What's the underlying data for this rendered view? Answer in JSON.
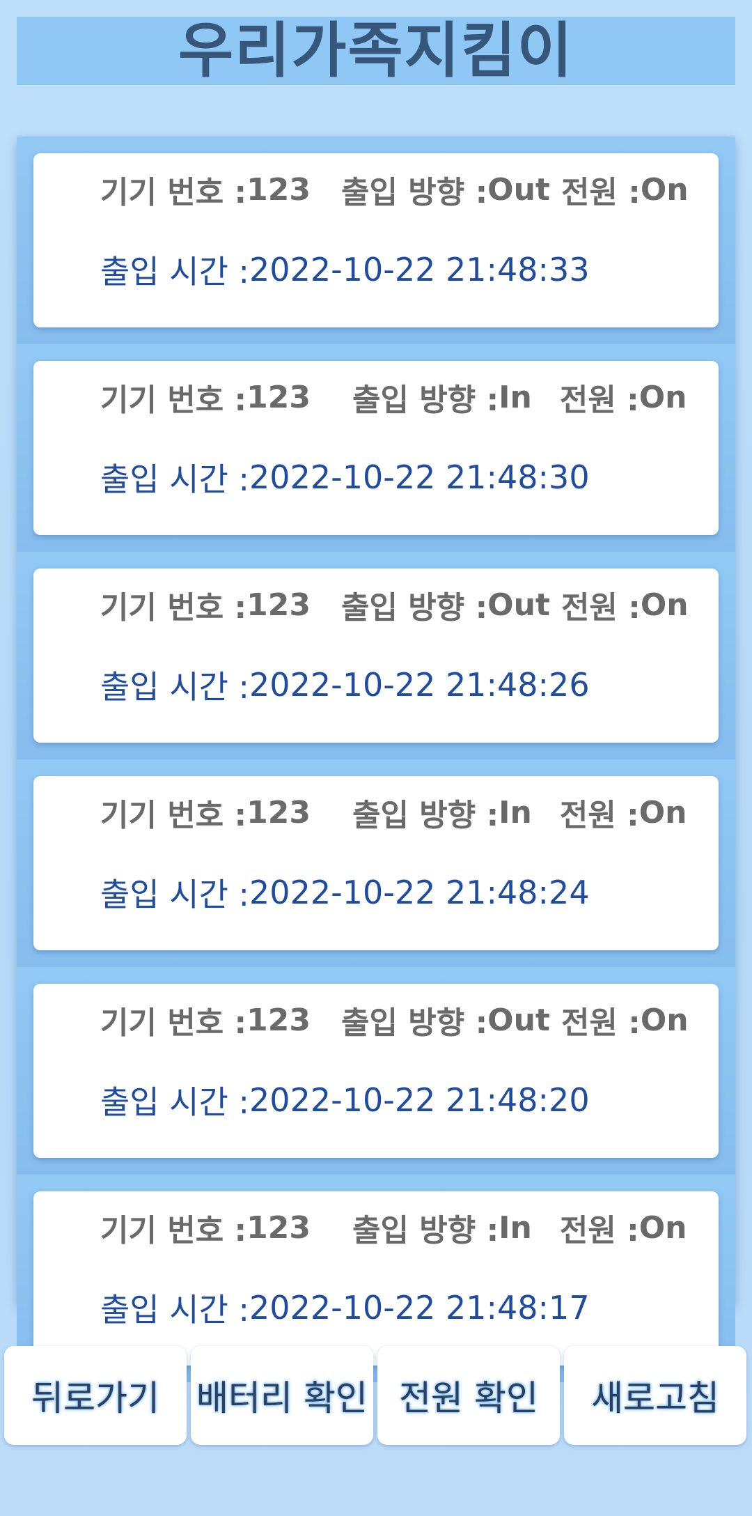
{
  "app": {
    "title": "우리가족지킴이"
  },
  "labels": {
    "device": "기기 번호 : ",
    "direction": "출입 방향 : ",
    "power": "전원 : ",
    "time": "출입 시간 : "
  },
  "records": [
    {
      "device": "123",
      "direction": "Out",
      "power": "On",
      "time": "2022-10-22 21:48:33"
    },
    {
      "device": "123",
      "direction": "In",
      "power": "On",
      "time": "2022-10-22 21:48:30"
    },
    {
      "device": "123",
      "direction": "Out",
      "power": "On",
      "time": "2022-10-22 21:48:26"
    },
    {
      "device": "123",
      "direction": "In",
      "power": "On",
      "time": "2022-10-22 21:48:24"
    },
    {
      "device": "123",
      "direction": "Out",
      "power": "On",
      "time": "2022-10-22 21:48:20"
    },
    {
      "device": "123",
      "direction": "In",
      "power": "On",
      "time": "2022-10-22 21:48:17"
    }
  ],
  "buttons": {
    "back": "뒤로가기",
    "battery": "배터리 확인",
    "power": "전원 확인",
    "refresh": "새로고침"
  },
  "colors": {
    "title_bg": "#90c8f5",
    "title_text": "#37577a",
    "list_bg": "#8ec5f2",
    "label_gray": "#6a6a6a",
    "time_blue": "#1f4c9e"
  }
}
